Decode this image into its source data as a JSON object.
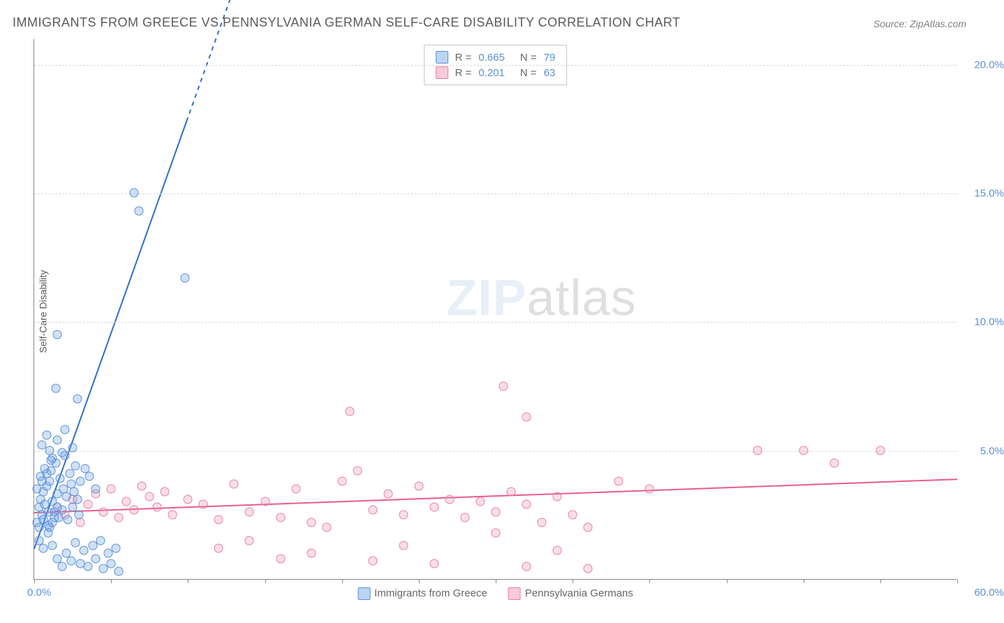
{
  "title": "IMMIGRANTS FROM GREECE VS PENNSYLVANIA GERMAN SELF-CARE DISABILITY CORRELATION CHART",
  "source": "Source: ZipAtlas.com",
  "ylabel": "Self-Care Disability",
  "watermark_zip": "ZIP",
  "watermark_atlas": "atlas",
  "chart": {
    "type": "scatter",
    "xlim": [
      0,
      60
    ],
    "ylim": [
      0,
      21
    ],
    "xticks": [
      0,
      5,
      10,
      15,
      20,
      25,
      30,
      35,
      40,
      45,
      50,
      55,
      60
    ],
    "yticks": [
      5,
      10,
      15,
      20
    ],
    "ytick_labels": [
      "5.0%",
      "10.0%",
      "15.0%",
      "20.0%"
    ],
    "x_origin_label": "0.0%",
    "x_max_label": "60.0%",
    "background_color": "#ffffff",
    "grid_color": "#d8d8d8",
    "axis_color": "#888888",
    "label_color": "#5b8fd6",
    "marker_size": 13,
    "series": {
      "greece": {
        "label": "Immigrants from Greece",
        "color_fill": "rgba(120,170,230,0.35)",
        "color_stroke": "#5b8fd6",
        "R": "0.665",
        "N": "79",
        "trend": {
          "x1": 0,
          "y1": 1.2,
          "x2": 13,
          "y2": 23,
          "dash_from_x": 9.9,
          "color": "#2f6fc2",
          "width": 2
        },
        "points": [
          [
            0.2,
            2.2
          ],
          [
            0.3,
            2.8
          ],
          [
            0.4,
            3.1
          ],
          [
            0.5,
            2.5
          ],
          [
            0.6,
            3.4
          ],
          [
            0.7,
            2.9
          ],
          [
            0.8,
            3.6
          ],
          [
            0.9,
            2.1
          ],
          [
            1.0,
            3.8
          ],
          [
            1.1,
            4.2
          ],
          [
            1.2,
            3.0
          ],
          [
            1.3,
            2.6
          ],
          [
            1.4,
            4.5
          ],
          [
            1.5,
            3.3
          ],
          [
            1.6,
            2.4
          ],
          [
            1.7,
            3.9
          ],
          [
            1.8,
            2.7
          ],
          [
            1.9,
            3.5
          ],
          [
            2.0,
            4.8
          ],
          [
            2.1,
            3.2
          ],
          [
            2.2,
            2.3
          ],
          [
            2.3,
            4.1
          ],
          [
            2.4,
            3.7
          ],
          [
            2.5,
            2.8
          ],
          [
            2.6,
            3.4
          ],
          [
            2.7,
            4.4
          ],
          [
            2.8,
            3.1
          ],
          [
            2.9,
            2.5
          ],
          [
            3.0,
            3.8
          ],
          [
            0.5,
            5.2
          ],
          [
            0.8,
            5.6
          ],
          [
            1.0,
            5.0
          ],
          [
            1.2,
            4.7
          ],
          [
            1.5,
            5.4
          ],
          [
            1.8,
            4.9
          ],
          [
            2.0,
            5.8
          ],
          [
            0.3,
            1.5
          ],
          [
            0.6,
            1.2
          ],
          [
            0.9,
            1.8
          ],
          [
            1.2,
            1.3
          ],
          [
            1.5,
            0.8
          ],
          [
            1.8,
            0.5
          ],
          [
            2.1,
            1.0
          ],
          [
            2.4,
            0.7
          ],
          [
            2.7,
            1.4
          ],
          [
            3.0,
            0.6
          ],
          [
            3.2,
            1.1
          ],
          [
            3.5,
            0.5
          ],
          [
            3.8,
            1.3
          ],
          [
            4.0,
            0.8
          ],
          [
            4.3,
            1.5
          ],
          [
            4.5,
            0.4
          ],
          [
            4.8,
            1.0
          ],
          [
            5.0,
            0.6
          ],
          [
            5.3,
            1.2
          ],
          [
            5.5,
            0.3
          ],
          [
            1.4,
            7.4
          ],
          [
            2.8,
            7.0
          ],
          [
            1.5,
            9.5
          ],
          [
            3.3,
            4.3
          ],
          [
            3.6,
            4.0
          ],
          [
            4.0,
            3.5
          ],
          [
            1.0,
            2.0
          ],
          [
            1.3,
            2.4
          ],
          [
            0.4,
            4.0
          ],
          [
            0.7,
            4.3
          ],
          [
            1.1,
            4.6
          ],
          [
            2.5,
            5.1
          ],
          [
            6.5,
            15.0
          ],
          [
            6.8,
            14.3
          ],
          [
            9.8,
            11.7
          ],
          [
            0.2,
            3.5
          ],
          [
            0.5,
            3.8
          ],
          [
            0.8,
            4.1
          ],
          [
            0.3,
            2.0
          ],
          [
            0.6,
            2.3
          ],
          [
            0.9,
            2.6
          ],
          [
            1.2,
            2.2
          ],
          [
            1.5,
            2.8
          ]
        ]
      },
      "penn_german": {
        "label": "Pennsylvania Germans",
        "color_fill": "rgba(240,150,175,0.3)",
        "color_stroke": "#e87ea3",
        "R": "0.201",
        "N": "63",
        "trend": {
          "x1": 0,
          "y1": 2.6,
          "x2": 60,
          "y2": 3.9,
          "color": "#e85a8f",
          "width": 2
        },
        "points": [
          [
            1.5,
            2.8
          ],
          [
            2.0,
            2.5
          ],
          [
            2.5,
            3.1
          ],
          [
            3.0,
            2.2
          ],
          [
            3.5,
            2.9
          ],
          [
            4.0,
            3.3
          ],
          [
            4.5,
            2.6
          ],
          [
            5.0,
            3.5
          ],
          [
            5.5,
            2.4
          ],
          [
            6.0,
            3.0
          ],
          [
            6.5,
            2.7
          ],
          [
            7.0,
            3.6
          ],
          [
            7.5,
            3.2
          ],
          [
            8.0,
            2.8
          ],
          [
            8.5,
            3.4
          ],
          [
            9.0,
            2.5
          ],
          [
            10.0,
            3.1
          ],
          [
            11.0,
            2.9
          ],
          [
            12.0,
            2.3
          ],
          [
            13.0,
            3.7
          ],
          [
            14.0,
            2.6
          ],
          [
            15.0,
            3.0
          ],
          [
            16.0,
            2.4
          ],
          [
            17.0,
            3.5
          ],
          [
            18.0,
            2.2
          ],
          [
            19.0,
            2.0
          ],
          [
            20.0,
            3.8
          ],
          [
            21.0,
            4.2
          ],
          [
            22.0,
            2.7
          ],
          [
            23.0,
            3.3
          ],
          [
            24.0,
            2.5
          ],
          [
            25.0,
            3.6
          ],
          [
            26.0,
            2.8
          ],
          [
            27.0,
            3.1
          ],
          [
            28.0,
            2.4
          ],
          [
            29.0,
            3.0
          ],
          [
            30.0,
            2.6
          ],
          [
            31.0,
            3.4
          ],
          [
            32.0,
            2.9
          ],
          [
            33.0,
            2.2
          ],
          [
            34.0,
            3.2
          ],
          [
            35.0,
            2.5
          ],
          [
            36.0,
            2.0
          ],
          [
            12.0,
            1.2
          ],
          [
            14.0,
            1.5
          ],
          [
            16.0,
            0.8
          ],
          [
            18.0,
            1.0
          ],
          [
            22.0,
            0.7
          ],
          [
            24.0,
            1.3
          ],
          [
            26.0,
            0.6
          ],
          [
            30.0,
            1.8
          ],
          [
            32.0,
            0.5
          ],
          [
            34.0,
            1.1
          ],
          [
            36.0,
            0.4
          ],
          [
            38.0,
            3.8
          ],
          [
            40.0,
            3.5
          ],
          [
            20.5,
            6.5
          ],
          [
            30.5,
            7.5
          ],
          [
            32.0,
            6.3
          ],
          [
            47.0,
            5.0
          ],
          [
            50.0,
            5.0
          ],
          [
            52.0,
            4.5
          ],
          [
            55.0,
            5.0
          ]
        ]
      }
    },
    "legend_top": {
      "r_label": "R =",
      "n_label": "N ="
    }
  }
}
